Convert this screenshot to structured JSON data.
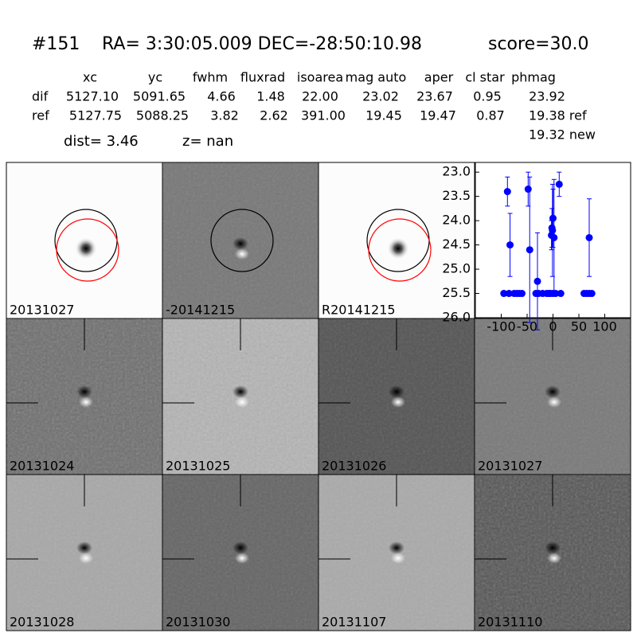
{
  "header": {
    "id": "#151",
    "coords": "RA= 3:30:05.009 DEC=-28:50:10.98",
    "score": "score=30.0"
  },
  "table": {
    "columns": [
      "xc",
      "yc",
      "fwhm",
      "fluxrad",
      "isoarea",
      "mag auto",
      "aper",
      "cl star",
      "phmag"
    ],
    "rows": [
      {
        "label": "dif",
        "values": [
          "5127.10",
          "5091.65",
          "4.66",
          "1.48",
          "22.00",
          "23.02",
          "23.67",
          "0.95",
          "23.92"
        ]
      },
      {
        "label": "ref",
        "values": [
          "5127.75",
          "5088.25",
          "3.82",
          "2.62",
          "391.00",
          "19.45",
          "19.47",
          "0.87",
          "19.38 ref"
        ]
      }
    ],
    "extra": "19.32 new",
    "dist": "dist=  3.46",
    "z": "z=   nan"
  },
  "panels": [
    {
      "label": "20131027"
    },
    {
      "label": "-20141215"
    },
    {
      "label": "R20141215"
    },
    {
      "label": "20131024"
    },
    {
      "label": "20131025"
    },
    {
      "label": "20131026"
    },
    {
      "label": "20131027",
      "color": "#ff0000"
    },
    {
      "label": "20131028"
    },
    {
      "label": "20131030"
    },
    {
      "label": "20131107"
    },
    {
      "label": "20131110"
    }
  ],
  "plot": {
    "type": "scatter",
    "color": "#0000ff",
    "xlim": [
      -150,
      150
    ],
    "xticks": [
      -100,
      -50,
      0,
      50,
      100
    ],
    "ylim": [
      26.0,
      22.8
    ],
    "yticks": [
      {
        "value": 23,
        "label": "23.0"
      },
      23.5,
      {
        "value": 24,
        "label": "24.0"
      },
      24.5,
      {
        "value": 25,
        "label": "25.0"
      },
      25.5,
      {
        "value": 26,
        "label": "26.0"
      }
    ],
    "detections": {
      "x": [
        -88,
        -83,
        -48,
        -45,
        -30,
        -3,
        -2,
        -1,
        0,
        2,
        12,
        70
      ],
      "y": [
        23.4,
        24.5,
        23.35,
        24.6,
        25.25,
        24.3,
        24.15,
        24.2,
        23.95,
        24.35,
        23.25,
        24.35
      ],
      "err": [
        0.3,
        0.65,
        0.35,
        1.5,
        1.0,
        0.3,
        0.4,
        0.95,
        0.6,
        1.2,
        0.25,
        0.8
      ]
    },
    "limits": {
      "x": [
        -95,
        -85,
        -75,
        -70,
        -65,
        -60,
        -33,
        -28,
        -20,
        -12,
        -8,
        -5,
        0,
        5,
        15,
        60,
        65,
        70,
        75
      ],
      "y": [
        25.5,
        25.5,
        25.5,
        25.5,
        25.5,
        25.5,
        25.5,
        25.5,
        25.5,
        25.5,
        25.5,
        25.5,
        25.5,
        25.5,
        25.5,
        25.5,
        25.5,
        25.5,
        25.5
      ]
    }
  }
}
